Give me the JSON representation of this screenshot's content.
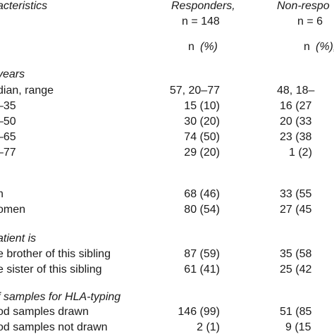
{
  "header": {
    "characteristics": "acteristics",
    "responders_label": "Responders,",
    "responders_n": "n = 148",
    "nonresp_label": "Non-respo",
    "nonresp_n": "n = 6",
    "n_resp": "n",
    "pct_resp": "(%)",
    "n_nonresp": "n",
    "pct_nonresp": "(%),"
  },
  "rows": [
    {
      "label": "years",
      "resp": "",
      "nonresp": "",
      "italic": true
    },
    {
      "label": "dian, range",
      "resp": "57, 20–77",
      "nonresp": "48, 18–"
    },
    {
      "label": "–35",
      "resp": "15 (10)",
      "nonresp": "16 (27"
    },
    {
      "label": "–50",
      "resp": "30 (20)",
      "nonresp": "20 (33"
    },
    {
      "label": "–65",
      "resp": "74 (50)",
      "nonresp": "23 (38"
    },
    {
      "label": "–77",
      "resp": "29 (20)",
      "nonresp": "1 (2)"
    },
    {
      "label": "n",
      "resp": "68 (46)",
      "nonresp": "33 (55"
    },
    {
      "label": "omen",
      "resp": "80 (54)",
      "nonresp": "27 (45"
    },
    {
      "label": "atient is",
      "resp": "",
      "nonresp": "",
      "italic": true
    },
    {
      "label": "e brother of this sibling",
      "resp": "87 (59)",
      "nonresp": "35 (58"
    },
    {
      "label": "e sister of this sibling",
      "resp": "61 (41)",
      "nonresp": "25 (42"
    },
    {
      "label": "f samples for HLA-typing",
      "resp": "",
      "nonresp": "",
      "italic": true
    },
    {
      "label": "od samples drawn",
      "resp": "146 (99)",
      "nonresp": "51 (85"
    },
    {
      "label": "od samples not drawn",
      "resp": "2 (1)",
      "nonresp": "9 (15"
    }
  ]
}
